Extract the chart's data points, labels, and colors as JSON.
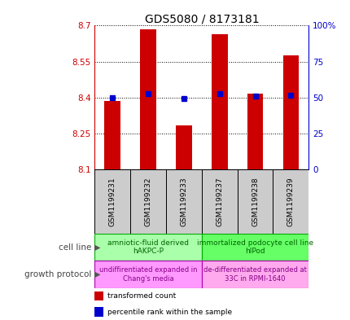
{
  "title": "GDS5080 / 8173181",
  "samples": [
    "GSM1199231",
    "GSM1199232",
    "GSM1199233",
    "GSM1199237",
    "GSM1199238",
    "GSM1199239"
  ],
  "transformed_counts": [
    8.385,
    8.685,
    8.285,
    8.665,
    8.415,
    8.575
  ],
  "percentile_values": [
    8.4,
    8.415,
    8.395,
    8.415,
    8.405,
    8.41
  ],
  "ylim": [
    8.1,
    8.7
  ],
  "y_ticks": [
    8.1,
    8.25,
    8.4,
    8.55,
    8.7
  ],
  "y_tick_labels": [
    "8.1",
    "8.25",
    "8.4",
    "8.55",
    "8.7"
  ],
  "right_yticks": [
    0,
    25,
    50,
    75,
    100
  ],
  "right_ytick_labels": [
    "0",
    "25",
    "50",
    "75",
    "100%"
  ],
  "bar_color": "#cc0000",
  "dot_color": "#0000cc",
  "left_axis_color": "#cc0000",
  "right_axis_color": "#0000cc",
  "cell_line_groups": [
    {
      "label": "amniotic-fluid derived\nhAKPC-P",
      "samples": [
        0,
        1,
        2
      ],
      "color": "#aaffaa",
      "text_color": "#006600",
      "edge_color": "#00aa00"
    },
    {
      "label": "immortalized podocyte cell line\nhIPod",
      "samples": [
        3,
        4,
        5
      ],
      "color": "#66ff66",
      "text_color": "#006600",
      "edge_color": "#00aa00"
    }
  ],
  "growth_protocol_groups": [
    {
      "label": "undiffirentiated expanded in\nChang's media",
      "samples": [
        0,
        1,
        2
      ],
      "color": "#ff99ff",
      "text_color": "#880088",
      "edge_color": "#aa00aa"
    },
    {
      "label": "de-differentiated expanded at\n33C in RPMI-1640",
      "samples": [
        3,
        4,
        5
      ],
      "color": "#ffaaee",
      "text_color": "#880088",
      "edge_color": "#aa00aa"
    }
  ],
  "cell_line_label": "cell line",
  "growth_protocol_label": "growth protocol",
  "legend_items": [
    {
      "label": "transformed count",
      "color": "#cc0000"
    },
    {
      "label": "percentile rank within the sample",
      "color": "#0000cc"
    }
  ],
  "bar_width": 0.45,
  "background_color": "#ffffff",
  "grid_color": "#000000",
  "title_fontsize": 10,
  "tick_fontsize": 7.5,
  "sample_label_fontsize": 6.5,
  "cell_label_fontsize": 6.5,
  "annotation_label_fontsize": 7.5,
  "legend_fontsize": 6.5
}
